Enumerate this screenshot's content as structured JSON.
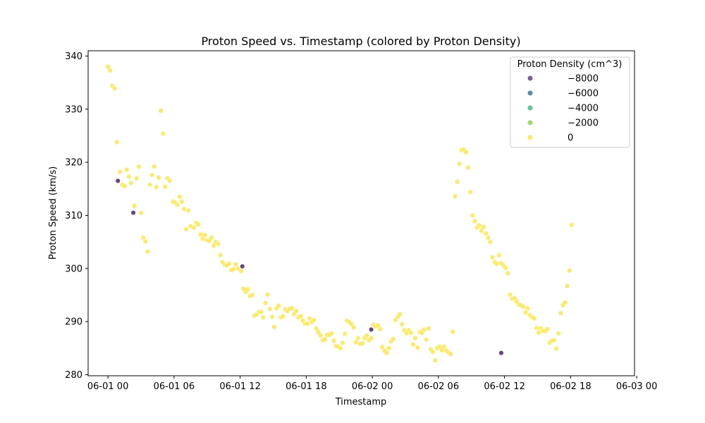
{
  "chart_data": {
    "type": "scatter",
    "title": "Proton Speed vs. Timestamp (colored by Proton Density)",
    "xlabel": "Timestamp",
    "ylabel": "Proton Speed (km/s)",
    "xlim_hours": [
      -1.8,
      47.8
    ],
    "ylim": [
      279.8,
      341.0
    ],
    "x_ticks": [
      {
        "h": 0,
        "label": "06-01 00"
      },
      {
        "h": 6,
        "label": "06-01 06"
      },
      {
        "h": 12,
        "label": "06-01 12"
      },
      {
        "h": 18,
        "label": "06-01 18"
      },
      {
        "h": 24,
        "label": "06-02 00"
      },
      {
        "h": 30,
        "label": "06-02 06"
      },
      {
        "h": 36,
        "label": "06-02 12"
      },
      {
        "h": 42,
        "label": "06-02 18"
      },
      {
        "h": 48,
        "label": "06-03 00"
      }
    ],
    "y_ticks": [
      {
        "v": 280,
        "label": "280"
      },
      {
        "v": 290,
        "label": "290"
      },
      {
        "v": 300,
        "label": "300"
      },
      {
        "v": 310,
        "label": "310"
      },
      {
        "v": 320,
        "label": "320"
      },
      {
        "v": 330,
        "label": "330"
      },
      {
        "v": 340,
        "label": "340"
      }
    ],
    "legend": {
      "title": "Proton Density (cm^3)",
      "position": "top-right",
      "entries": [
        {
          "label": "−8000",
          "color": "#5c4482"
        },
        {
          "label": "−6000",
          "color": "#3b7a96"
        },
        {
          "label": "−4000",
          "color": "#3dbb85"
        },
        {
          "label": "−2000",
          "color": "#8fd150"
        },
        {
          "label": "0",
          "color": "#fde64a"
        }
      ]
    },
    "colors": {
      "normal": "#fde64a",
      "outlier": "#5c2f6e"
    },
    "points_yellow": [
      [
        0.0,
        338.0
      ],
      [
        0.2,
        337.3
      ],
      [
        0.4,
        334.4
      ],
      [
        0.6,
        333.9
      ],
      [
        0.8,
        323.8
      ],
      [
        1.1,
        318.2
      ],
      [
        1.3,
        315.8
      ],
      [
        1.5,
        315.5
      ],
      [
        1.7,
        318.6
      ],
      [
        1.9,
        317.3
      ],
      [
        2.1,
        316.1
      ],
      [
        2.4,
        311.8
      ],
      [
        2.6,
        317.0
      ],
      [
        2.8,
        319.2
      ],
      [
        3.0,
        310.5
      ],
      [
        3.2,
        305.8
      ],
      [
        3.4,
        305.1
      ],
      [
        3.6,
        303.2
      ],
      [
        3.8,
        315.8
      ],
      [
        4.0,
        317.6
      ],
      [
        4.2,
        319.2
      ],
      [
        4.4,
        315.3
      ],
      [
        4.6,
        317.1
      ],
      [
        4.8,
        329.7
      ],
      [
        5.0,
        325.4
      ],
      [
        5.2,
        315.4
      ],
      [
        5.4,
        317.0
      ],
      [
        5.6,
        316.5
      ],
      [
        5.9,
        312.6
      ],
      [
        6.1,
        312.4
      ],
      [
        6.3,
        312.0
      ],
      [
        6.5,
        313.5
      ],
      [
        6.7,
        312.6
      ],
      [
        6.9,
        311.2
      ],
      [
        7.1,
        307.4
      ],
      [
        7.3,
        310.9
      ],
      [
        7.5,
        308.0
      ],
      [
        7.8,
        307.7
      ],
      [
        8.0,
        308.6
      ],
      [
        8.2,
        308.3
      ],
      [
        8.4,
        306.4
      ],
      [
        8.6,
        305.6
      ],
      [
        8.8,
        306.3
      ],
      [
        9.0,
        305.3
      ],
      [
        9.2,
        305.2
      ],
      [
        9.4,
        305.8
      ],
      [
        9.6,
        304.3
      ],
      [
        9.8,
        305.0
      ],
      [
        10.0,
        304.6
      ],
      [
        10.2,
        302.5
      ],
      [
        10.4,
        301.2
      ],
      [
        10.6,
        300.7
      ],
      [
        10.8,
        300.6
      ],
      [
        11.0,
        300.9
      ],
      [
        11.2,
        299.7
      ],
      [
        11.4,
        299.9
      ],
      [
        11.6,
        300.8
      ],
      [
        11.8,
        300.0
      ],
      [
        12.1,
        299.5
      ],
      [
        12.3,
        296.2
      ],
      [
        12.5,
        295.6
      ],
      [
        12.7,
        296.1
      ],
      [
        12.9,
        294.8
      ],
      [
        13.1,
        295.0
      ],
      [
        13.3,
        291.1
      ],
      [
        13.5,
        291.3
      ],
      [
        13.7,
        291.8
      ],
      [
        13.9,
        291.8
      ],
      [
        14.1,
        290.8
      ],
      [
        14.3,
        293.5
      ],
      [
        14.5,
        295.1
      ],
      [
        14.7,
        292.4
      ],
      [
        14.9,
        290.9
      ],
      [
        15.1,
        289.0
      ],
      [
        15.3,
        292.5
      ],
      [
        15.5,
        293.0
      ],
      [
        15.7,
        290.8
      ],
      [
        15.9,
        291.0
      ],
      [
        16.1,
        292.3
      ],
      [
        16.3,
        292.0
      ],
      [
        16.5,
        292.4
      ],
      [
        16.7,
        292.5
      ],
      [
        16.9,
        291.4
      ],
      [
        17.1,
        292.0
      ],
      [
        17.3,
        290.8
      ],
      [
        17.5,
        291.0
      ],
      [
        17.7,
        290.2
      ],
      [
        17.9,
        289.6
      ],
      [
        18.1,
        289.6
      ],
      [
        18.3,
        290.6
      ],
      [
        18.5,
        289.9
      ],
      [
        18.7,
        290.3
      ],
      [
        18.9,
        288.7
      ],
      [
        19.1,
        288.0
      ],
      [
        19.3,
        287.4
      ],
      [
        19.5,
        286.5
      ],
      [
        19.7,
        286.7
      ],
      [
        19.9,
        287.5
      ],
      [
        20.1,
        287.5
      ],
      [
        20.3,
        287.8
      ],
      [
        20.5,
        286.4
      ],
      [
        20.7,
        285.4
      ],
      [
        20.9,
        285.3
      ],
      [
        21.1,
        285.0
      ],
      [
        21.3,
        286.0
      ],
      [
        21.5,
        287.7
      ],
      [
        21.7,
        290.2
      ],
      [
        21.9,
        289.9
      ],
      [
        22.1,
        289.5
      ],
      [
        22.3,
        288.9
      ],
      [
        22.5,
        286.1
      ],
      [
        22.7,
        286.9
      ],
      [
        22.9,
        285.8
      ],
      [
        23.1,
        285.9
      ],
      [
        23.3,
        286.9
      ],
      [
        23.5,
        287.4
      ],
      [
        23.7,
        286.5
      ],
      [
        23.9,
        286.9
      ],
      [
        24.1,
        289.4
      ],
      [
        24.3,
        289.1
      ],
      [
        24.5,
        289.3
      ],
      [
        24.7,
        288.6
      ],
      [
        24.9,
        285.2
      ],
      [
        25.1,
        284.5
      ],
      [
        25.3,
        284.1
      ],
      [
        25.5,
        285.0
      ],
      [
        25.7,
        286.3
      ],
      [
        25.9,
        286.7
      ],
      [
        26.1,
        290.3
      ],
      [
        26.3,
        290.9
      ],
      [
        26.5,
        291.4
      ],
      [
        26.7,
        289.5
      ],
      [
        26.9,
        288.4
      ],
      [
        27.1,
        287.8
      ],
      [
        27.3,
        288.4
      ],
      [
        27.5,
        287.9
      ],
      [
        27.7,
        285.7
      ],
      [
        27.9,
        286.9
      ],
      [
        28.1,
        285.1
      ],
      [
        28.3,
        288.0
      ],
      [
        28.5,
        287.9
      ],
      [
        28.7,
        288.5
      ],
      [
        28.9,
        286.6
      ],
      [
        29.1,
        288.7
      ],
      [
        29.3,
        284.8
      ],
      [
        29.5,
        284.3
      ],
      [
        29.7,
        282.7
      ],
      [
        29.9,
        285.0
      ],
      [
        30.1,
        285.3
      ],
      [
        30.3,
        284.6
      ],
      [
        30.5,
        285.3
      ],
      [
        30.7,
        284.5
      ],
      [
        30.9,
        284.2
      ],
      [
        31.1,
        283.9
      ],
      [
        31.3,
        288.1
      ],
      [
        31.5,
        313.6
      ],
      [
        31.7,
        316.3
      ],
      [
        31.9,
        319.7
      ],
      [
        32.1,
        322.3
      ],
      [
        32.3,
        322.4
      ],
      [
        32.5,
        321.9
      ],
      [
        32.7,
        319.0
      ],
      [
        32.9,
        314.4
      ],
      [
        33.1,
        310.0
      ],
      [
        33.3,
        308.9
      ],
      [
        33.5,
        307.7
      ],
      [
        33.7,
        308.1
      ],
      [
        33.9,
        307.1
      ],
      [
        34.1,
        307.8
      ],
      [
        34.3,
        306.6
      ],
      [
        34.5,
        305.8
      ],
      [
        34.7,
        305.0
      ],
      [
        34.9,
        302.1
      ],
      [
        35.1,
        301.2
      ],
      [
        35.3,
        300.9
      ],
      [
        35.5,
        302.5
      ],
      [
        35.7,
        301.0
      ],
      [
        35.9,
        300.5
      ],
      [
        36.1,
        300.1
      ],
      [
        36.3,
        299.1
      ],
      [
        36.5,
        295.1
      ],
      [
        36.7,
        294.3
      ],
      [
        36.9,
        294.4
      ],
      [
        37.1,
        293.8
      ],
      [
        37.3,
        293.2
      ],
      [
        37.5,
        293.1
      ],
      [
        37.7,
        292.8
      ],
      [
        37.9,
        291.7
      ],
      [
        38.1,
        292.5
      ],
      [
        38.3,
        291.2
      ],
      [
        38.5,
        290.8
      ],
      [
        38.7,
        290.6
      ],
      [
        38.9,
        288.8
      ],
      [
        39.1,
        287.9
      ],
      [
        39.3,
        288.7
      ],
      [
        39.5,
        288.2
      ],
      [
        39.7,
        288.2
      ],
      [
        39.9,
        288.6
      ],
      [
        40.1,
        286.0
      ],
      [
        40.3,
        286.4
      ],
      [
        40.5,
        286.5
      ],
      [
        40.7,
        284.9
      ],
      [
        40.9,
        287.8
      ],
      [
        41.1,
        291.6
      ],
      [
        41.3,
        293.1
      ],
      [
        41.5,
        293.6
      ],
      [
        41.7,
        296.7
      ],
      [
        41.9,
        299.6
      ],
      [
        42.1,
        308.2
      ]
    ],
    "points_purple": [
      [
        0.9,
        316.5
      ],
      [
        2.3,
        310.5
      ],
      [
        12.2,
        300.4
      ],
      [
        23.9,
        288.5
      ],
      [
        35.7,
        284.1
      ]
    ]
  }
}
